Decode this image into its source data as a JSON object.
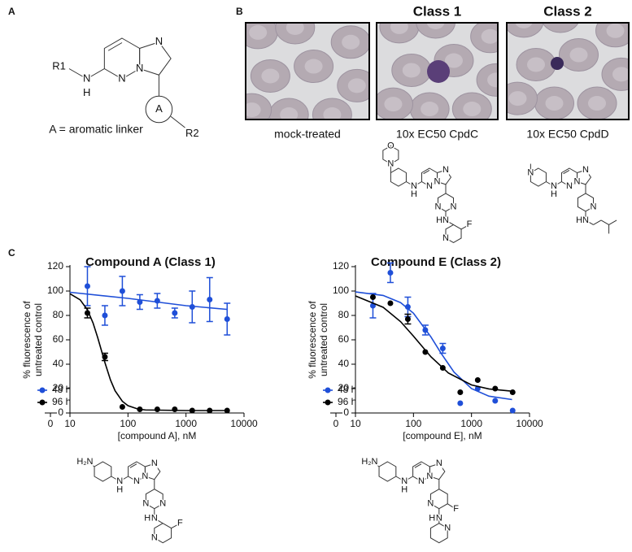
{
  "panel_labels": [
    "A",
    "B",
    "C"
  ],
  "scaffold": {
    "atoms": [
      "N",
      "N",
      "N",
      "N",
      "H",
      "R1",
      "A",
      "R2"
    ],
    "caption": "A = aromatic linker"
  },
  "micrographs": [
    {
      "caption": "mock-treated"
    },
    {
      "title": "Class 1",
      "caption": "10x EC50 CpdC"
    },
    {
      "title": "Class 2",
      "caption": "10x EC50 CpdD"
    }
  ],
  "structures": [
    {
      "atoms": [
        "O",
        "N",
        "N",
        "H",
        "N",
        "N",
        "N",
        "N",
        "N",
        "N",
        "H",
        "N",
        "F"
      ]
    },
    {
      "atoms": [
        "N",
        "N",
        "H",
        "N",
        "N",
        "N",
        "N",
        "N",
        "H"
      ]
    },
    {
      "atoms": [
        "H₂N",
        "N",
        "H",
        "N",
        "N",
        "N",
        "N",
        "N",
        "N",
        "H",
        "N",
        "F"
      ]
    },
    {
      "atoms": [
        "H₂N",
        "N",
        "H",
        "N",
        "N",
        "N",
        "N",
        "F",
        "N",
        "H",
        "N"
      ]
    }
  ],
  "chart_data": [
    {
      "type": "line",
      "title": "Compound A (Class 1)",
      "xlabel": "[compound A], nM",
      "ylabel": [
        "% fluorescence of",
        "untreated control"
      ],
      "xscale": "log",
      "xlim": [
        10,
        10000
      ],
      "xticks": [
        10,
        100,
        1000,
        10000
      ],
      "x_break_tick": 0,
      "ylim": [
        0,
        120
      ],
      "yticks": [
        0,
        20,
        40,
        60,
        80,
        100,
        120
      ],
      "legend": "lower left",
      "x": [
        20,
        40,
        80,
        160,
        320,
        640,
        1280,
        2560,
        5120
      ],
      "series": [
        {
          "name": "48 h",
          "color": "#1f4fd8",
          "values": [
            104,
            80,
            100,
            91,
            92,
            82,
            87,
            93,
            77
          ],
          "errors": [
            16,
            8,
            12,
            6,
            6,
            4,
            13,
            18,
            13
          ],
          "fit": {
            "x": [
              10,
              100,
              1000,
              5000
            ],
            "values": [
              99,
              94,
              88,
              85
            ]
          }
        },
        {
          "name": "96 h",
          "color": "#000000",
          "values": [
            82,
            46,
            5,
            3,
            3,
            3,
            2,
            2,
            2
          ],
          "errors": [
            4,
            3,
            null,
            null,
            null,
            null,
            null,
            null,
            null
          ],
          "fit": {
            "x": [
              10,
              15,
              20,
              25,
              30,
              35,
              40,
              50,
              60,
              80,
              100,
              150,
              200,
              1000,
              5000
            ],
            "values": [
              97.8,
              92.8,
              84.6,
              73.8,
              62,
              51,
              41.4,
              27,
              18.2,
              9.6,
              6,
              3.2,
              2.5,
              2,
              2
            ]
          }
        }
      ]
    },
    {
      "type": "line",
      "title": "Compound E (Class 2)",
      "xlabel": "[compound E], nM",
      "ylabel": [
        "% fluorescence of",
        "untreated control"
      ],
      "xscale": "log",
      "xlim": [
        10,
        10000
      ],
      "xticks": [
        10,
        100,
        1000,
        10000
      ],
      "x_break_tick": 0,
      "ylim": [
        0,
        120
      ],
      "yticks": [
        0,
        20,
        40,
        60,
        80,
        100,
        120
      ],
      "legend": "lower left",
      "x": [
        20,
        40,
        80,
        160,
        320,
        640,
        1280,
        2560,
        5120
      ],
      "series": [
        {
          "name": "48 h",
          "color": "#1f4fd8",
          "values": [
            88,
            115,
            87,
            68,
            53,
            8,
            20,
            10,
            2
          ],
          "errors": [
            10,
            8,
            8,
            4,
            4,
            null,
            null,
            null,
            null
          ],
          "fit": {
            "x": [
              10,
              30,
              60,
              100,
              200,
              300,
              500,
              1000,
              2000,
              5000
            ],
            "values": [
              99.3,
              96.4,
              90.5,
              81.8,
              62.4,
              48.9,
              33.5,
              20,
              13.8,
              11
            ]
          }
        },
        {
          "name": "96 h",
          "color": "#000000",
          "values": [
            95,
            90,
            77,
            50,
            37,
            17,
            27,
            20,
            17
          ],
          "errors": [
            null,
            null,
            4,
            null,
            null,
            null,
            null,
            null,
            null
          ],
          "fit": {
            "x": [
              10,
              30,
              60,
              100,
              200,
              400,
              1000,
              2000,
              5000
            ],
            "values": [
              96,
              86.7,
              74.9,
              63,
              46.1,
              32.8,
              23,
              19.7,
              17.9
            ]
          }
        }
      ]
    }
  ]
}
